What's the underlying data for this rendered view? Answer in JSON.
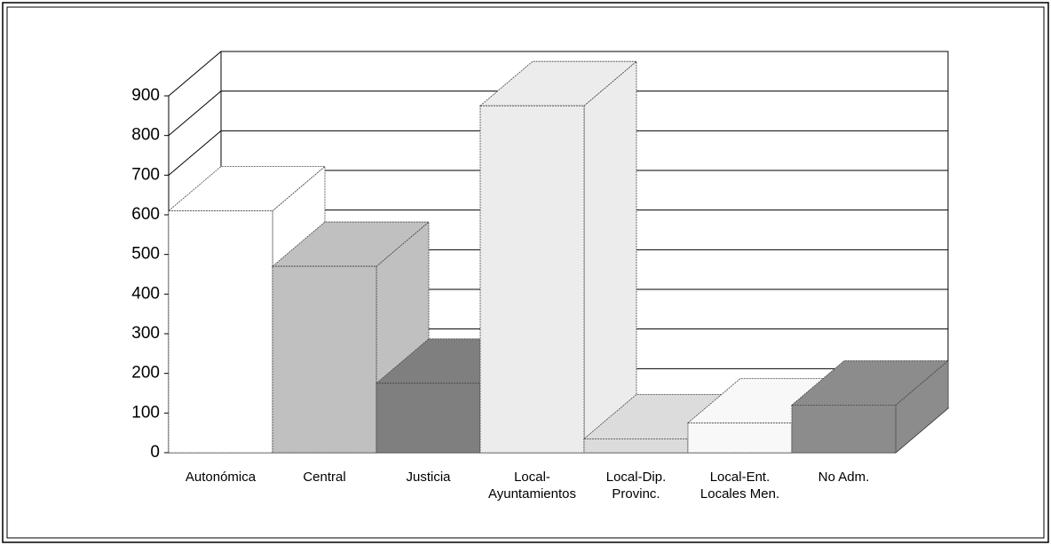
{
  "chart_data": {
    "type": "bar3d",
    "categories": [
      "Autonómica",
      "Central",
      "Justicia",
      "Local-\nAyuntamientos",
      "Local-Dip.\nProvinc.",
      "Local-Ent.\nLocales Men.",
      "No Adm."
    ],
    "values": [
      610,
      470,
      175,
      875,
      35,
      75,
      120
    ],
    "colors": [
      "#ffffff",
      "#c0c0c0",
      "#7f7f7f",
      "#ececec",
      "#dcdcdc",
      "#f8f8f8",
      "#8c8c8c"
    ],
    "ylim": [
      0,
      900
    ],
    "yticks": [
      0,
      100,
      200,
      300,
      400,
      500,
      600,
      700,
      800,
      900
    ],
    "grid": true
  }
}
